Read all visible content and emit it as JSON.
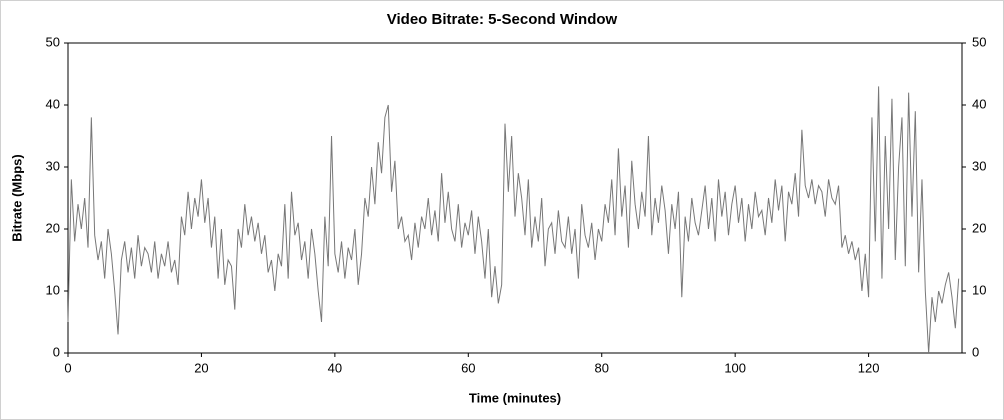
{
  "chart_data": {
    "type": "line",
    "title": "Video Bitrate: 5-Second Window",
    "x_label": "Time (minutes)",
    "y_label": "Bitrate (Mbps)",
    "xlim": [
      0,
      134
    ],
    "xticks": [
      0,
      20,
      40,
      60,
      80,
      100,
      120
    ],
    "ylim": [
      0,
      50
    ],
    "yticks": [
      0,
      10,
      20,
      30,
      40,
      50
    ],
    "y2lim": [
      0,
      50
    ],
    "y2ticks": [
      0,
      10,
      20,
      30,
      40,
      50
    ],
    "grid": false,
    "x": [
      0,
      0.5,
      1,
      1.5,
      2,
      2.5,
      3,
      3.5,
      4,
      4.5,
      5,
      5.5,
      6,
      6.5,
      7,
      7.5,
      8,
      8.5,
      9,
      9.5,
      10,
      10.5,
      11,
      11.5,
      12,
      12.5,
      13,
      13.5,
      14,
      14.5,
      15,
      15.5,
      16,
      16.5,
      17,
      17.5,
      18,
      18.5,
      19,
      19.5,
      20,
      20.5,
      21,
      21.5,
      22,
      22.5,
      23,
      23.5,
      24,
      24.5,
      25,
      25.5,
      26,
      26.5,
      27,
      27.5,
      28,
      28.5,
      29,
      29.5,
      30,
      30.5,
      31,
      31.5,
      32,
      32.5,
      33,
      33.5,
      34,
      34.5,
      35,
      35.5,
      36,
      36.5,
      37,
      37.5,
      38,
      38.5,
      39,
      39.5,
      40,
      40.5,
      41,
      41.5,
      42,
      42.5,
      43,
      43.5,
      44,
      44.5,
      45,
      45.5,
      46,
      46.5,
      47,
      47.5,
      48,
      48.5,
      49,
      49.5,
      50,
      50.5,
      51,
      51.5,
      52,
      52.5,
      53,
      53.5,
      54,
      54.5,
      55,
      55.5,
      56,
      56.5,
      57,
      57.5,
      58,
      58.5,
      59,
      59.5,
      60,
      60.5,
      61,
      61.5,
      62,
      62.5,
      63,
      63.5,
      64,
      64.5,
      65,
      65.5,
      66,
      66.5,
      67,
      67.5,
      68,
      68.5,
      69,
      69.5,
      70,
      70.5,
      71,
      71.5,
      72,
      72.5,
      73,
      73.5,
      74,
      74.5,
      75,
      75.5,
      76,
      76.5,
      77,
      77.5,
      78,
      78.5,
      79,
      79.5,
      80,
      80.5,
      81,
      81.5,
      82,
      82.5,
      83,
      83.5,
      84,
      84.5,
      85,
      85.5,
      86,
      86.5,
      87,
      87.5,
      88,
      88.5,
      89,
      89.5,
      90,
      90.5,
      91,
      91.5,
      92,
      92.5,
      93,
      93.5,
      94,
      94.5,
      95,
      95.5,
      96,
      96.5,
      97,
      97.5,
      98,
      98.5,
      99,
      99.5,
      100,
      100.5,
      101,
      101.5,
      102,
      102.5,
      103,
      103.5,
      104,
      104.5,
      105,
      105.5,
      106,
      106.5,
      107,
      107.5,
      108,
      108.5,
      109,
      109.5,
      110,
      110.5,
      111,
      111.5,
      112,
      112.5,
      113,
      113.5,
      114,
      114.5,
      115,
      115.5,
      116,
      116.5,
      117,
      117.5,
      118,
      118.5,
      119,
      119.5,
      120,
      120.5,
      121,
      121.5,
      122,
      122.5,
      123,
      123.5,
      124,
      124.5,
      125,
      125.5,
      126,
      126.5,
      127,
      127.5,
      128,
      128.5,
      129,
      129.5,
      130,
      130.5,
      131,
      131.5,
      132,
      132.5,
      133,
      133.5
    ],
    "series": [
      {
        "color": "#777777",
        "values": [
          5,
          28,
          18,
          24,
          20,
          25,
          17,
          38,
          19,
          15,
          18,
          12,
          20,
          16,
          10,
          3,
          15,
          18,
          13,
          17,
          12,
          19,
          14,
          17,
          16,
          13,
          18,
          12,
          16,
          14,
          18,
          13,
          15,
          11,
          22,
          19,
          26,
          20,
          25,
          22,
          28,
          21,
          25,
          17,
          22,
          12,
          20,
          11,
          15,
          14,
          7,
          20,
          17,
          24,
          19,
          22,
          18,
          21,
          16,
          19,
          13,
          15,
          10,
          16,
          14,
          24,
          12,
          26,
          19,
          21,
          15,
          18,
          12,
          20,
          16,
          10,
          5,
          22,
          14,
          35,
          16,
          13,
          18,
          12,
          17,
          15,
          20,
          11,
          16,
          25,
          22,
          30,
          24,
          34,
          29,
          38,
          40,
          26,
          31,
          20,
          22,
          18,
          19,
          15,
          21,
          17,
          22,
          20,
          25,
          19,
          23,
          18,
          29,
          21,
          26,
          20,
          18,
          24,
          17,
          21,
          19,
          23,
          16,
          22,
          18,
          12,
          20,
          9,
          14,
          8,
          11,
          37,
          26,
          35,
          22,
          29,
          25,
          19,
          28,
          17,
          22,
          18,
          25,
          14,
          20,
          21,
          16,
          23,
          18,
          17,
          22,
          16,
          20,
          12,
          24,
          19,
          17,
          21,
          15,
          20,
          18,
          24,
          21,
          28,
          19,
          33,
          22,
          27,
          17,
          31,
          24,
          20,
          26,
          22,
          35,
          19,
          25,
          21,
          27,
          23,
          16,
          24,
          20,
          26,
          9,
          22,
          18,
          25,
          21,
          19,
          23,
          27,
          20,
          25,
          18,
          28,
          22,
          26,
          19,
          24,
          27,
          21,
          25,
          18,
          24,
          20,
          26,
          22,
          23,
          19,
          25,
          21,
          28,
          23,
          27,
          18,
          26,
          24,
          29,
          22,
          36,
          27,
          25,
          28,
          24,
          27,
          26,
          22,
          28,
          25,
          24,
          27,
          17,
          19,
          16,
          18,
          15,
          17,
          10,
          16,
          9,
          38,
          18,
          43,
          12,
          35,
          20,
          41,
          15,
          30,
          38,
          14,
          42,
          22,
          39,
          13,
          28,
          10,
          0,
          9,
          5,
          10,
          8,
          11,
          13,
          9,
          4,
          12
        ]
      }
    ]
  }
}
